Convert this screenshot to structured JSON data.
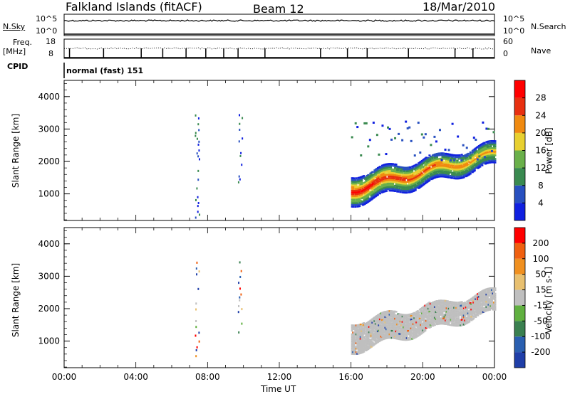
{
  "header": {
    "title": "Falkland Islands (fitACF)",
    "beam": "Beam 12",
    "date": "18/Mar/2010"
  },
  "noise_panel": {
    "left_label": "N.Sky",
    "left_top_tick": "10^5",
    "left_bottom_tick": "10^0",
    "right_label": "N.Search",
    "right_top_tick": "10^5",
    "right_bottom_tick": "10^0"
  },
  "freq_panel": {
    "left_label_1": "Freq.",
    "left_label_2": "[MHz]",
    "left_top_tick": "18",
    "left_bottom_tick": "8",
    "right_label": "Nave",
    "right_top_tick": "60",
    "right_bottom_tick": "0"
  },
  "cpid_panel": {
    "label": "CPID",
    "mode_text": "normal (fast) 151"
  },
  "chart_data": [
    {
      "type": "heatmap",
      "name": "power_panel",
      "ylabel": "Slant Range [km]",
      "y_ticks": [
        "1000",
        "2000",
        "3000",
        "4000"
      ],
      "ylim": [
        180,
        4500
      ],
      "x_ticks": [
        "00:00",
        "04:00",
        "08:00",
        "12:00",
        "16:00",
        "20:00",
        "00:00"
      ],
      "xlim": [
        0,
        24
      ],
      "colorbar": {
        "label": "Power [dB]",
        "ticks": [
          "4",
          "8",
          "12",
          "16",
          "20",
          "24",
          "28"
        ],
        "colors": [
          "#1020e0",
          "#2850c0",
          "#3a8a50",
          "#6ab04a",
          "#e8d030",
          "#f08a10",
          "#e83010",
          "#ff0000"
        ]
      },
      "features": [
        {
          "kind": "band",
          "t_start": 16.0,
          "t_end": 24.0,
          "range_start": 900,
          "range_end": 2200,
          "peak_db": 28
        },
        {
          "kind": "scatter",
          "t": 7.4,
          "range_min": 300,
          "range_max": 3500,
          "db": 8
        },
        {
          "kind": "scatter",
          "t": 9.8,
          "range_min": 1300,
          "range_max": 3500,
          "db": 8
        },
        {
          "kind": "upper_band",
          "t_start": 16.0,
          "t_end": 24.0,
          "range_start": 2000,
          "range_end": 3200,
          "db": 6
        }
      ]
    },
    {
      "type": "heatmap",
      "name": "velocity_panel",
      "ylabel": "Slant Range [km]",
      "y_ticks": [
        "1000",
        "2000",
        "3000",
        "4000"
      ],
      "ylim": [
        180,
        4500
      ],
      "x_ticks": [
        "00:00",
        "04:00",
        "08:00",
        "12:00",
        "16:00",
        "20:00",
        "00:00"
      ],
      "xlim": [
        0,
        24
      ],
      "xlabel": "Time UT",
      "colorbar": {
        "label": "Velocity [m s-1]",
        "ticks": [
          "200",
          "100",
          "50",
          "15",
          "-15",
          "-50",
          "-100",
          "-200"
        ],
        "colors": [
          "#1f3ea8",
          "#2a5fb0",
          "#3a8050",
          "#60b040",
          "#bfbfbf",
          "#e8c070",
          "#f09020",
          "#f06010",
          "#ff0000"
        ]
      },
      "features": [
        {
          "kind": "ground_scatter",
          "t_start": 16.0,
          "t_end": 24.0,
          "range_start": 900,
          "range_end": 2200,
          "velocity": 0
        },
        {
          "kind": "scatter",
          "t": 7.4,
          "range_min": 300,
          "range_max": 3500,
          "velocity": -200
        },
        {
          "kind": "scatter",
          "t": 9.8,
          "range_min": 1300,
          "range_max": 3500,
          "velocity": 100
        }
      ]
    }
  ]
}
